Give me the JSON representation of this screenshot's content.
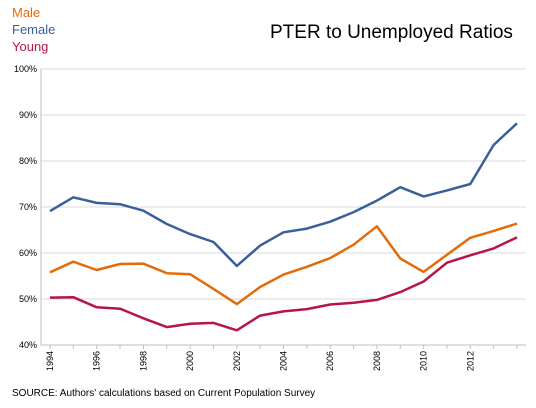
{
  "chart_data": {
    "type": "line",
    "title": "PTER to Unemployed Ratios",
    "source": "SOURCE: Authors' calculations based on Current Population Survey",
    "x": [
      1994,
      1995,
      1996,
      1997,
      1998,
      1999,
      2000,
      2001,
      2002,
      2003,
      2004,
      2005,
      2006,
      2007,
      2008,
      2009,
      2010,
      2011,
      2012,
      2013,
      2014
    ],
    "xticks": [
      "1994",
      "1996",
      "1998",
      "2000",
      "2002",
      "2004",
      "2006",
      "2008",
      "2010",
      "2012"
    ],
    "yticks": [
      "40%",
      "50%",
      "60%",
      "70%",
      "80%",
      "90%",
      "100%"
    ],
    "ylim": [
      40,
      100
    ],
    "grid": true,
    "legend_position": "top-left",
    "series": [
      {
        "name": "Male",
        "color": "#e36c0a",
        "values": [
          55.8,
          58.1,
          56.3,
          57.6,
          57.7,
          55.6,
          55.4,
          52.2,
          48.9,
          52.6,
          55.3,
          57.0,
          58.9,
          61.8,
          65.8,
          58.8,
          55.9,
          59.6,
          63.3,
          64.8,
          66.4
        ]
      },
      {
        "name": "Female",
        "color": "#3a5f9b",
        "values": [
          69.1,
          72.1,
          70.9,
          70.6,
          69.2,
          66.3,
          64.1,
          62.4,
          57.2,
          61.6,
          64.5,
          65.3,
          66.8,
          68.9,
          71.4,
          74.3,
          72.3,
          73.6,
          75.0,
          83.5,
          88.2
        ]
      },
      {
        "name": "Young",
        "color": "#b5154b",
        "values": [
          50.3,
          50.4,
          48.2,
          47.9,
          45.8,
          43.9,
          44.6,
          44.8,
          43.2,
          46.4,
          47.3,
          47.8,
          48.8,
          49.2,
          49.8,
          51.5,
          53.8,
          57.9,
          59.5,
          61.0,
          63.4
        ]
      }
    ]
  }
}
